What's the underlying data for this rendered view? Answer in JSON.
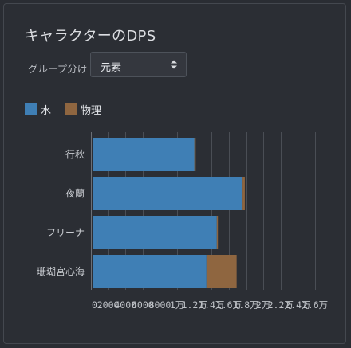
{
  "panel": {
    "title": "キャラクターのDPS"
  },
  "controls": {
    "group_label": "グループ分け",
    "group_select_value": "元素"
  },
  "colors": {
    "water": "#3f7fb5",
    "physical": "#8f6640",
    "grid": "#4a4e55",
    "axis": "#6b6f76"
  },
  "legend": [
    {
      "name": "水",
      "color": "#3f7fb5"
    },
    {
      "name": "物理",
      "color": "#8f6640"
    }
  ],
  "chart_data": {
    "type": "bar",
    "orientation": "horizontal",
    "stacked": true,
    "categories": [
      "行秋",
      "夜蘭",
      "フリーナ",
      "珊瑚宮心海"
    ],
    "series": [
      {
        "name": "水",
        "values": [
          12000,
          17500,
          14600,
          13400
        ]
      },
      {
        "name": "物理",
        "values": [
          150,
          350,
          130,
          3500
        ]
      }
    ],
    "xlim": [
      0,
      26000
    ],
    "xticks": [
      0,
      2000,
      4000,
      6000,
      8000,
      10000,
      12000,
      14000,
      16000,
      18000,
      20000,
      22000,
      24000,
      26000
    ],
    "xtick_labels": [
      "0",
      "2000",
      "4000",
      "6000",
      "8000",
      "1万",
      "1.2万",
      "1.4万",
      "1.6万",
      "1.8万",
      "2万",
      "2.2万",
      "2.4万",
      "2.6万"
    ],
    "grid": true,
    "legend_position": "top-left"
  }
}
